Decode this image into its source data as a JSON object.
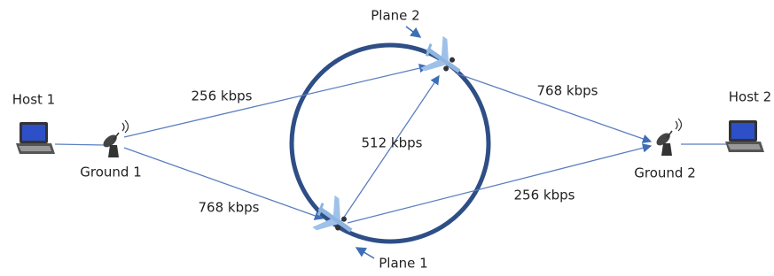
{
  "nodes": [
    {
      "label": "Host 1"
    },
    {
      "label": "Ground 1"
    },
    {
      "label": "Plane 1"
    },
    {
      "label": "Plane 2"
    },
    {
      "label": "Ground 2"
    },
    {
      "label": "Host 2"
    }
  ],
  "edges": [
    {
      "label": "256 kbps"
    },
    {
      "label": "768 kbps"
    },
    {
      "label": "512 kbps"
    },
    {
      "label": "768 kbps"
    },
    {
      "label": "256 kbps"
    }
  ]
}
